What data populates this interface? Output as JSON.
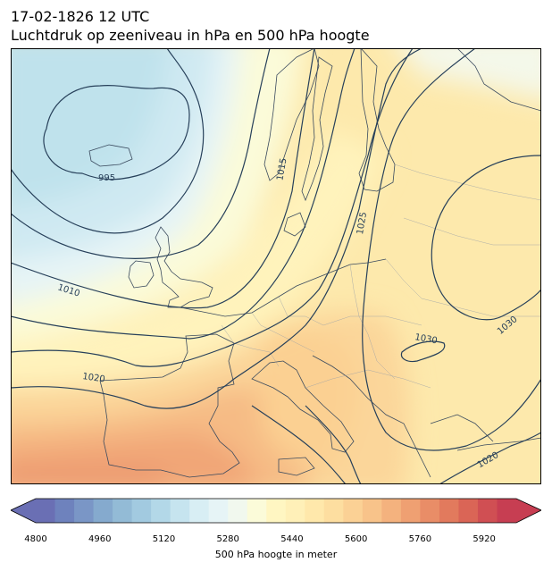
{
  "header": {
    "datetime": "17-02-1826 12 UTC",
    "subtitle": "Luchtdruk op zeeniveau in hPa en 500 hPa hoogte"
  },
  "map": {
    "region": "Europe",
    "isobar_labels": [
      {
        "text": "995"
      },
      {
        "text": "1010"
      },
      {
        "text": "1015"
      },
      {
        "text": "1020"
      },
      {
        "text": "1025"
      },
      {
        "text": "1030"
      },
      {
        "text": "1030"
      },
      {
        "text": "1020"
      }
    ]
  },
  "colorbar": {
    "label": "500 hPa hoogte in meter",
    "min": 4800,
    "max": 6000,
    "step": 40,
    "ticks": [
      "4800",
      "4960",
      "5120",
      "5280",
      "5440",
      "5600",
      "5760",
      "5920"
    ],
    "colors": [
      "#6a6fb4",
      "#6e82bd",
      "#7a96c6",
      "#85aace",
      "#93bbd6",
      "#a2cae0",
      "#b3d8e8",
      "#c6e4ef",
      "#d8eef4",
      "#e6f4f6",
      "#f1f8ee",
      "#fbfbd9",
      "#fff6c2",
      "#fff0b8",
      "#ffe8ab",
      "#fddea0",
      "#fbd195",
      "#f8c38a",
      "#f4b27e",
      "#efa072",
      "#e98d67",
      "#e27a5d",
      "#da6556",
      "#d04f53",
      "#c73e52"
    ]
  }
}
